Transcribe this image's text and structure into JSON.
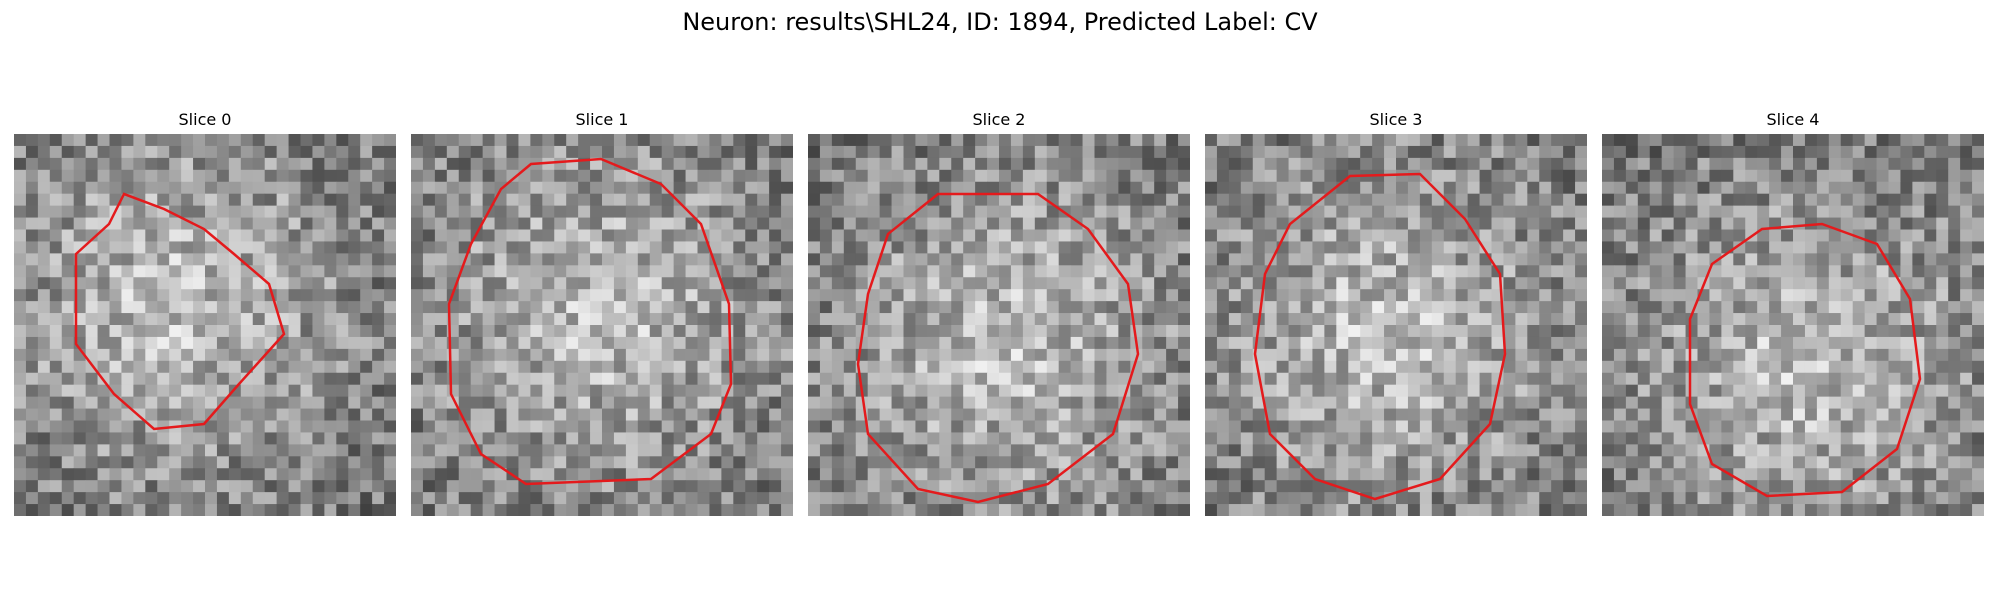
{
  "figure": {
    "title": "Neuron: results\\SHL24, ID: 1894, Predicted Label: CV",
    "contour_color": "#e41a1c",
    "colormap": "gray",
    "panels": [
      {
        "title": "Slice 0",
        "seed": 11
      },
      {
        "title": "Slice 1",
        "seed": 23
      },
      {
        "title": "Slice 2",
        "seed": 37
      },
      {
        "title": "Slice 3",
        "seed": 41
      },
      {
        "title": "Slice 4",
        "seed": 53
      }
    ]
  }
}
